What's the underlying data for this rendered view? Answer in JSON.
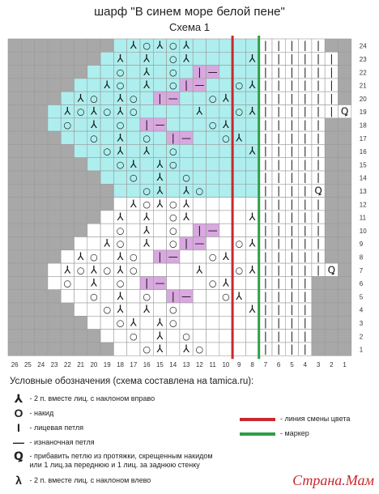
{
  "title": "шарф \"В синем море белой пене\"",
  "subtitle": "Схема 1",
  "colors": {
    "gray": "#a8a8a8",
    "cyan": "#aeeeee",
    "lilac": "#d9a8e0",
    "white": "#ffffff",
    "red_line": "#c8282e",
    "green_line": "#2e9e4a"
  },
  "chart_data": {
    "type": "table",
    "col_numbers": [
      "26",
      "25",
      "24",
      "23",
      "22",
      "21",
      "20",
      "19",
      "18",
      "17",
      "16",
      "15",
      "14",
      "13",
      "12",
      "11",
      "10",
      "9",
      "8",
      "7",
      "6",
      "5",
      "4",
      "3",
      "2",
      "1"
    ],
    "row_numbers": [
      "24",
      "23",
      "22",
      "21",
      "20",
      "19",
      "18",
      "17",
      "16",
      "15",
      "14",
      "13",
      "12",
      "11",
      "10",
      "9",
      "8",
      "7",
      "6",
      "5",
      "4",
      "3",
      "2",
      "1"
    ],
    "cyan_rows_range": [
      13,
      24
    ],
    "red_line_after_col": 10,
    "green_line_after_col": 8,
    "grid_rows": [
      "GGGGGGGG.YOYOY..........GG",
      "GGGGGGG.Y.Y.OY....YOY....G",
      "GGGGGG..O.Y.O.|-...YOY...G",
      "GGGGG..YO.Y.O|-..OY.OY...G",
      "GGGG.YO.YO.|-..OY..YOY...G",
      "GGG.YOYOYO....Y..OY.OY...Q",
      "GGG.O.Y.O.|-...OY..YOY..GG",
      "GGGG..O.Y.O.|-..OY.OY...GG",
      "GGGGG..OY.Y.O.....YOY...GG",
      "GGGGGG..OY.YO......OY...GG",
      "GGGGGGG..O.Y.O.....YOY..GG",
      "GGGGGGGG..OY.YO.....OY.QGG",
      "GGGGGGGG.YOYOY..........GG",
      "GGGGGGG.Y.Y.OY....YOY...GG",
      "GGGGGG..O.Y.O.|-...YOY..GG",
      "GGGGG..YO.Y.O|-..OY.OY..GG",
      "GGGG.YO.YO.|-..OY..YOY..GG",
      "GGG.YOYOYO....Y..OY.OY..QG",
      "GGG.O.Y.O.|-...OY..YOY.GGG",
      "GGGG..O.Y.O.|-..OY.OY..GGG",
      "GGGGG..OY.Y.O.....YOY..GGG",
      "GGGGGG..OY.YO......OY..GGG",
      "GGGGGGG..O.Y.O.....YOY.GGG",
      "GGGGGGGG..OY.YO.....OY.GGG"
    ]
  },
  "legend": {
    "title": "Условные обозначения (схема составлена на tamica.ru):",
    "items": [
      {
        "symbol": "⅄",
        "text": "- 2 п. вместе лиц. с наклоном вправо"
      },
      {
        "symbol": "O",
        "text": "- накид"
      },
      {
        "symbol": "I",
        "text": "- лицевая петля"
      },
      {
        "symbol": "—",
        "text": "- изнаночная петля"
      },
      {
        "symbol": "Ꝗ",
        "text": "- прибавить петлю из протяжки, скрещенным накидом или 1 лиц.за переднюю и 1 лиц. за заднюю стенку"
      },
      {
        "symbol": "λ",
        "text": "- 2 п. вместе лиц. с наклоном влево"
      }
    ],
    "red_line_label": "- линия смены цвета",
    "green_line_label": "- маркер"
  },
  "logo": {
    "part1": "Страна",
    "dot": ".",
    "part2": "Мам"
  }
}
